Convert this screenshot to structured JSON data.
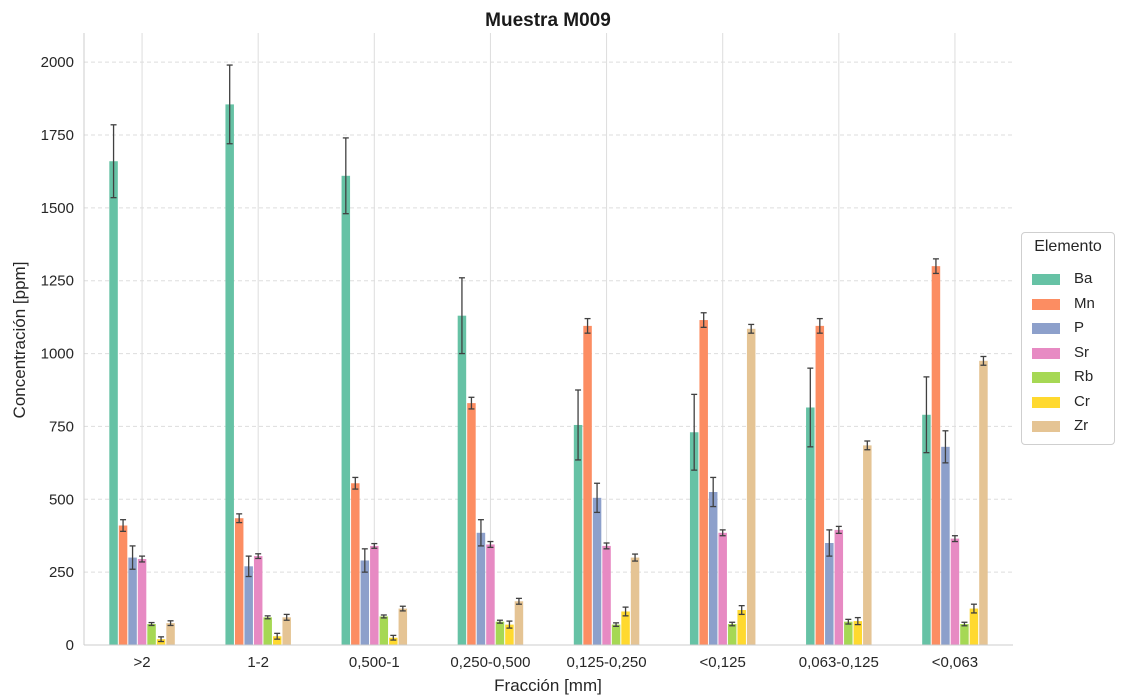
{
  "chart_data": {
    "type": "bar",
    "title": "Muestra M009",
    "xlabel": "Fracción [mm]",
    "ylabel": "Concentración [ppm]",
    "ylim": [
      0,
      2100
    ],
    "yticks": [
      0,
      250,
      500,
      750,
      1000,
      1250,
      1500,
      1750,
      2000
    ],
    "grid": true,
    "legend_title": "Elemento",
    "legend_position": "right",
    "categories": [
      ">2",
      "1-2",
      "0,500-1",
      "0,250-0,500",
      "0,125-0,250",
      "<0,125",
      "0,063-0,125",
      "<0,063"
    ],
    "series": [
      {
        "name": "Ba",
        "color": "#66c2a5",
        "values": [
          1660,
          1855,
          1610,
          1130,
          755,
          730,
          815,
          790
        ],
        "errors": [
          125,
          135,
          130,
          130,
          120,
          130,
          135,
          130
        ]
      },
      {
        "name": "Mn",
        "color": "#fc8d62",
        "values": [
          410,
          435,
          555,
          830,
          1095,
          1115,
          1095,
          1300
        ],
        "errors": [
          20,
          15,
          20,
          20,
          25,
          25,
          25,
          25
        ]
      },
      {
        "name": "P",
        "color": "#8da0cb",
        "values": [
          300,
          270,
          290,
          385,
          505,
          525,
          350,
          680
        ],
        "errors": [
          40,
          35,
          40,
          45,
          50,
          50,
          45,
          55
        ]
      },
      {
        "name": "Sr",
        "color": "#e78ac3",
        "values": [
          295,
          305,
          340,
          345,
          340,
          385,
          395,
          365
        ],
        "errors": [
          10,
          8,
          8,
          10,
          10,
          10,
          12,
          10
        ]
      },
      {
        "name": "Rb",
        "color": "#a6d854",
        "values": [
          72,
          95,
          98,
          80,
          70,
          72,
          80,
          72
        ],
        "errors": [
          5,
          5,
          5,
          5,
          6,
          6,
          8,
          6
        ]
      },
      {
        "name": "Cr",
        "color": "#ffd92f",
        "values": [
          20,
          30,
          25,
          70,
          115,
          120,
          82,
          125
        ],
        "errors": [
          8,
          10,
          8,
          12,
          15,
          15,
          12,
          15
        ]
      },
      {
        "name": "Zr",
        "color": "#e5c494",
        "values": [
          75,
          95,
          125,
          150,
          300,
          1085,
          685,
          975
        ],
        "errors": [
          8,
          10,
          8,
          10,
          12,
          15,
          15,
          15
        ]
      }
    ]
  }
}
